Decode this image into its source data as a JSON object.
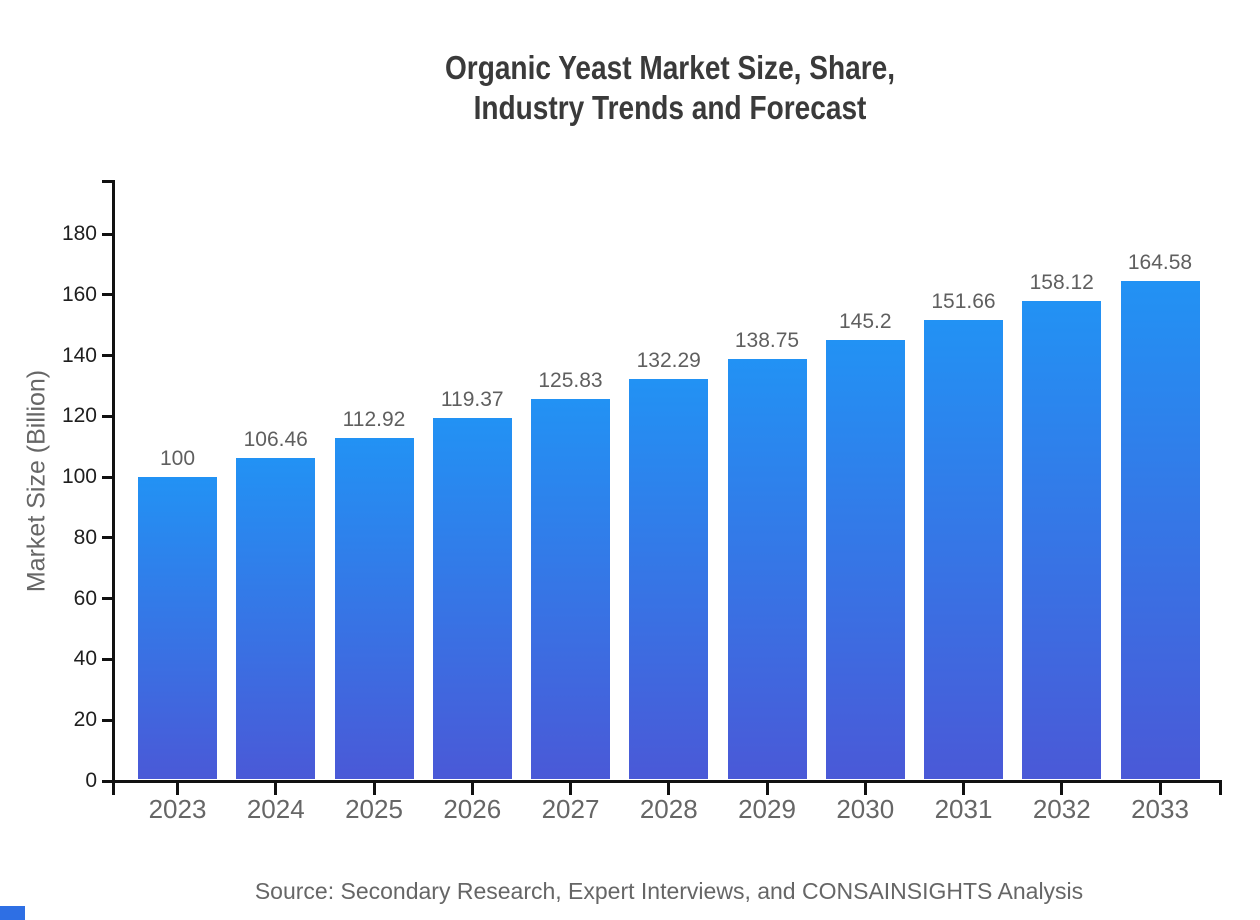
{
  "header": {
    "title_line1": "Organic Yeast Market Size, Share,",
    "title_line2": "Industry Trends and Forecast"
  },
  "footer": {
    "source": "Source: Secondary Research, Expert Interviews, and CONSAINSIGHTS Analysis"
  },
  "colors": {
    "bar_gradient_top": "#2292F4",
    "bar_gradient_bottom": "#4A59D7",
    "axis_line": "#111111",
    "title_text": "#3a3a3a",
    "y_tick_text": "#1f1f1f",
    "category_text": "#666666",
    "value_label_text": "#5f5f5f",
    "ylabel_text": "#666666",
    "source_text": "#666666",
    "corner_mark": "#2e6fe4"
  },
  "chart_data": {
    "type": "bar",
    "title": "Organic Yeast Market Size, Share, Industry Trends and Forecast",
    "categories": [
      "2023",
      "2024",
      "2025",
      "2026",
      "2027",
      "2028",
      "2029",
      "2030",
      "2031",
      "2032",
      "2033"
    ],
    "values": [
      100,
      106.46,
      112.92,
      119.37,
      125.83,
      132.29,
      138.75,
      145.2,
      151.66,
      158.12,
      164.58
    ],
    "bar_value_labels": [
      "100",
      "106.46",
      "112.92",
      "119.37",
      "125.83",
      "132.29",
      "138.75",
      "145.2",
      "151.66",
      "158.12",
      "164.58"
    ],
    "xlabel": "",
    "ylabel": "Market Size (Billion)",
    "ylim": [
      0,
      197.5
    ],
    "yticks": [
      0,
      20,
      40,
      60,
      80,
      100,
      120,
      140,
      160,
      180
    ],
    "grid": false,
    "legend": false,
    "bar_gradient": [
      "#2292F4",
      "#4A59D7"
    ]
  }
}
